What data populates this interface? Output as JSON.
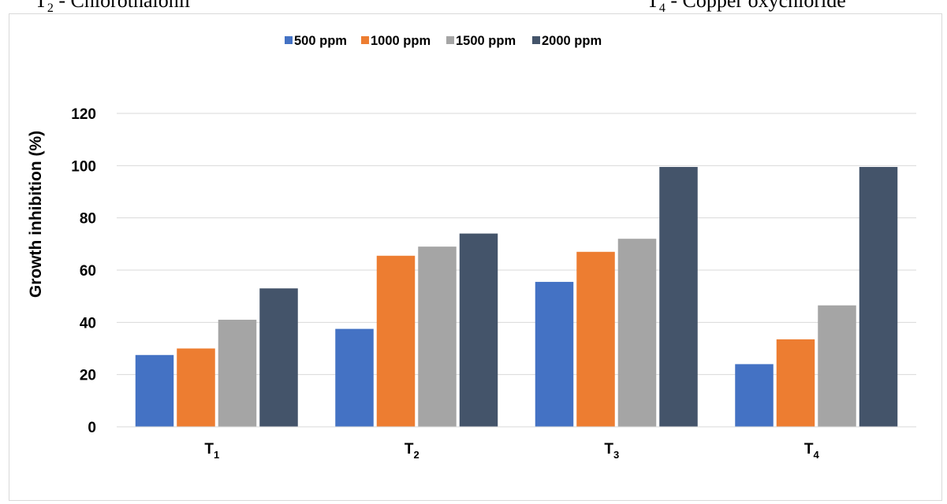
{
  "header": {
    "left": {
      "text": "T",
      "sub": "2",
      "rest": " - Chlorothalonil"
    },
    "right": {
      "text": "T",
      "sub": "4",
      "rest": " - Copper oxychloride"
    }
  },
  "chart_data": {
    "type": "bar",
    "title": "",
    "xlabel": "",
    "ylabel": "Growth inhibition (%)",
    "ylim": [
      0,
      120
    ],
    "yticks": [
      0,
      20,
      40,
      60,
      80,
      100,
      120
    ],
    "categories": [
      {
        "main": "T",
        "sub": "1"
      },
      {
        "main": "T",
        "sub": "2"
      },
      {
        "main": "T",
        "sub": "3"
      },
      {
        "main": "T",
        "sub": "4"
      }
    ],
    "series": [
      {
        "name": "500 ppm",
        "color": "#4472c4",
        "values": [
          27.5,
          37.5,
          55.5,
          24
        ]
      },
      {
        "name": "1000 ppm",
        "color": "#ed7d31",
        "values": [
          30,
          65.5,
          67,
          33.5
        ]
      },
      {
        "name": "1500 ppm",
        "color": "#a5a5a5",
        "values": [
          41,
          69,
          72,
          46.5
        ]
      },
      {
        "name": "2000 ppm",
        "color": "#44546a",
        "values": [
          53,
          74,
          99.5,
          99.5
        ]
      }
    ],
    "grid": true,
    "legend_position": "top-center"
  }
}
